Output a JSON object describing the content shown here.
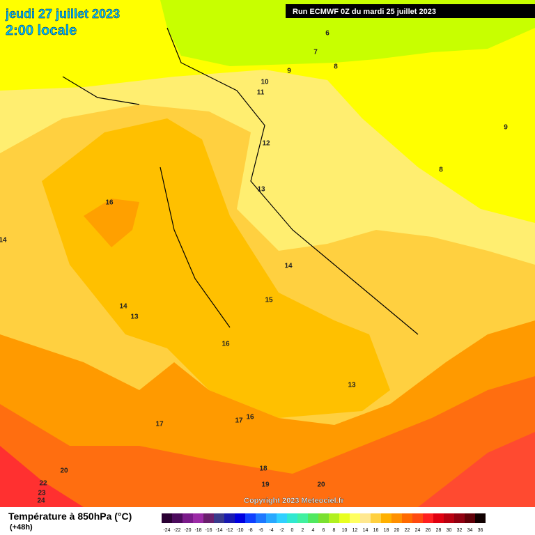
{
  "header": {
    "date": "jeudi 27 juillet 2023",
    "time": "2:00 locale",
    "run": "Run ECMWF 0Z du mardi 25 juillet 2023"
  },
  "copyright": "Copyright 2023 Meteociel.fr",
  "footer": {
    "title": "Température à 850hPa (°C)",
    "lead": "(+48h)"
  },
  "legend": {
    "labels": [
      -24,
      -22,
      -20,
      -18,
      -16,
      -14,
      -12,
      -10,
      -8,
      -6,
      -4,
      -2,
      0,
      2,
      4,
      6,
      8,
      10,
      12,
      14,
      16,
      18,
      20,
      22,
      24,
      26,
      28,
      30,
      32,
      34,
      36
    ],
    "colors": [
      "#2a0033",
      "#4b0a5c",
      "#7a1a8a",
      "#9b2aa6",
      "#6a1f6e",
      "#3a3a8c",
      "#1a1ab0",
      "#0000e0",
      "#1040ff",
      "#1e78ff",
      "#28a8ff",
      "#30d0ff",
      "#30e8d0",
      "#40f0a0",
      "#50e860",
      "#7ae030",
      "#b0f020",
      "#e8ff20",
      "#ffff60",
      "#ffe890",
      "#ffd040",
      "#ffb000",
      "#ff9000",
      "#ff6a00",
      "#ff4a10",
      "#ff2020",
      "#e00010",
      "#b80010",
      "#900010",
      "#600008",
      "#100000"
    ]
  },
  "contours": [
    "6",
    "7",
    "8",
    "9",
    "10",
    "11",
    "12",
    "13",
    "16",
    "14",
    "14",
    "15",
    "14",
    "13",
    "16",
    "13",
    "17",
    "17",
    "16",
    "18",
    "19",
    "20",
    "20",
    "22",
    "23",
    "24",
    "9",
    "8"
  ]
}
